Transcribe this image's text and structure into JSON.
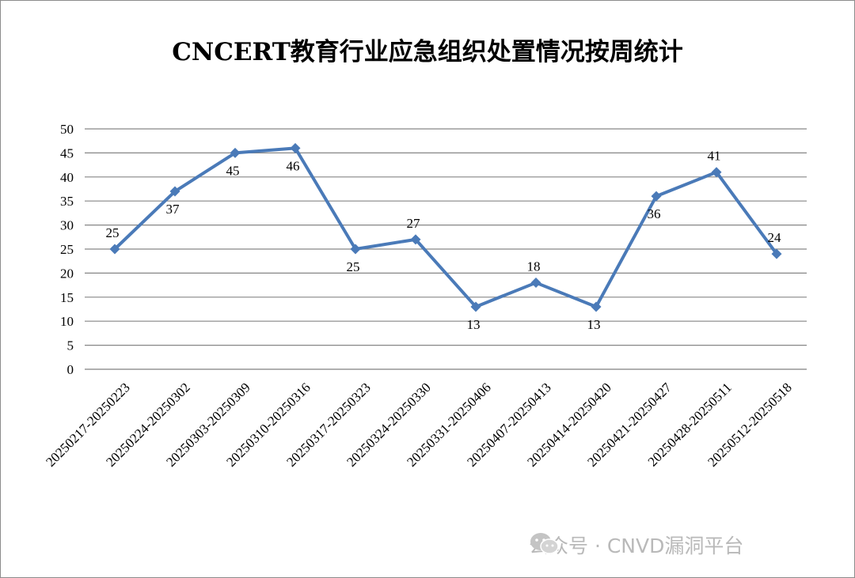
{
  "chart_data": {
    "type": "line",
    "title": "CNCERT教育行业应急组织处置情况按周统计",
    "categories": [
      "20250217-20250223",
      "20250224-20250302",
      "20250303-20250309",
      "20250310-20250316",
      "20250317-20250323",
      "20250324-20250330",
      "20250331-20250406",
      "20250407-20250413",
      "20250414-20250420",
      "20250421-20250427",
      "20250428-20250511",
      "20250512-20250518"
    ],
    "series": [
      {
        "values": [
          25,
          37,
          45,
          46,
          25,
          27,
          13,
          18,
          13,
          36,
          41,
          24
        ]
      }
    ],
    "ylim": [
      0,
      50
    ],
    "yticks": [
      0,
      5,
      10,
      15,
      20,
      25,
      30,
      35,
      40,
      45,
      50
    ],
    "grid": true,
    "data_labels": true,
    "colors": {
      "line": "#4a7ab8",
      "grid": "#868686"
    }
  },
  "watermark": {
    "text": "公众号 · CNVD漏洞平台",
    "icon": "wechat-icon"
  }
}
